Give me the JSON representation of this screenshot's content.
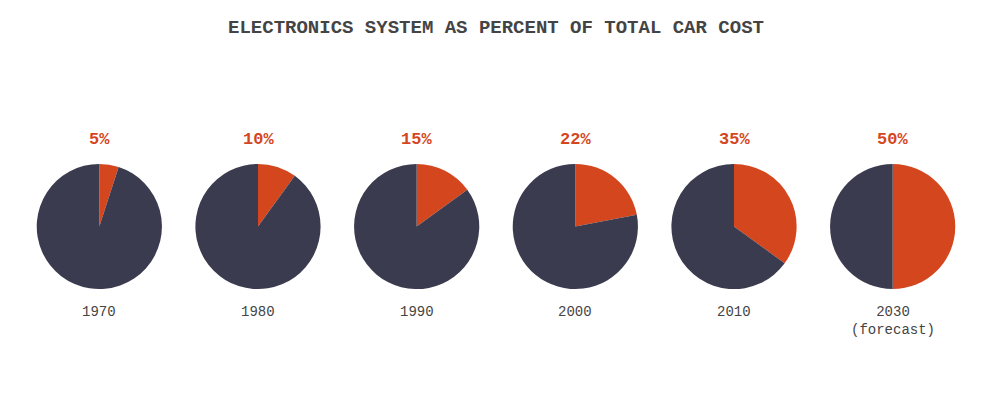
{
  "chart_data": {
    "type": "pie",
    "title": "ELECTRONICS SYSTEM AS PERCENT OF TOTAL CAR COST",
    "categories": [
      "1970",
      "1980",
      "1990",
      "2000",
      "2010",
      "2030\n(forecast)"
    ],
    "values": [
      5,
      10,
      15,
      22,
      35,
      50
    ],
    "value_labels": [
      "5%",
      "10%",
      "15%",
      "22%",
      "35%",
      "50%"
    ],
    "colors": [
      "#d4471e",
      "#3b3b4f"
    ]
  }
}
